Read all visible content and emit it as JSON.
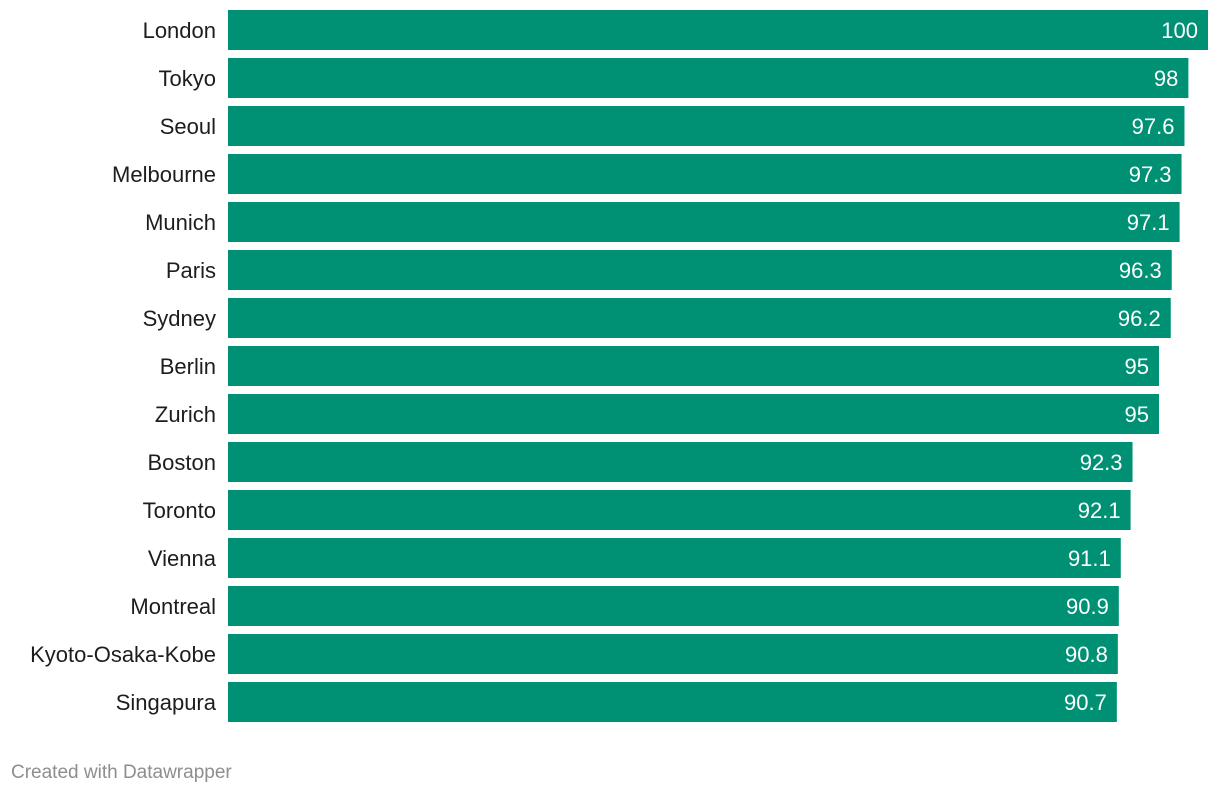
{
  "chart_data": {
    "type": "bar",
    "orientation": "horizontal",
    "categories": [
      "London",
      "Tokyo",
      "Seoul",
      "Melbourne",
      "Munich",
      "Paris",
      "Sydney",
      "Berlin",
      "Zurich",
      "Boston",
      "Toronto",
      "Vienna",
      "Montreal",
      "Kyoto-Osaka-Kobe",
      "Singapura"
    ],
    "values": [
      100,
      98,
      97.6,
      97.3,
      97.1,
      96.3,
      96.2,
      95,
      95,
      92.3,
      92.1,
      91.1,
      90.9,
      90.8,
      90.7
    ],
    "value_labels": [
      "100",
      "98",
      "97.6",
      "97.3",
      "97.1",
      "96.3",
      "96.2",
      "95",
      "95",
      "92.3",
      "92.1",
      "91.1",
      "90.9",
      "90.8",
      "90.7"
    ],
    "xlim": [
      0,
      100
    ],
    "grid": false,
    "bar_color": "#009175"
  },
  "footer": {
    "credit": "Created with Datawrapper"
  }
}
